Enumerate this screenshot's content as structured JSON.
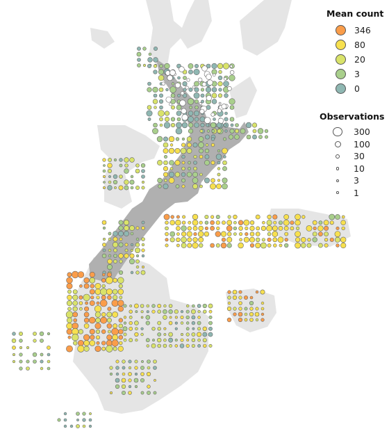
{
  "legend": {
    "mean_title": "Mean count",
    "mean_items": [
      {
        "label": "346",
        "color": "#fa9d4a"
      },
      {
        "label": "80",
        "color": "#f7e04f"
      },
      {
        "label": "20",
        "color": "#d9e36a"
      },
      {
        "label": "3",
        "color": "#a9cf8c"
      },
      {
        "label": "0",
        "color": "#8fb7b2"
      }
    ],
    "obs_title": "Observations",
    "obs_items": [
      {
        "label": "300",
        "value": 300
      },
      {
        "label": "100",
        "value": 100
      },
      {
        "label": "30",
        "value": 30
      },
      {
        "label": "10",
        "value": 10
      },
      {
        "label": "3",
        "value": 3
      },
      {
        "label": "1",
        "value": 1
      }
    ]
  },
  "map_colors": {
    "north_island": "#b0b0b0",
    "south_island": "#e2e2e2",
    "offshore_land": "#e6e6e6"
  }
}
